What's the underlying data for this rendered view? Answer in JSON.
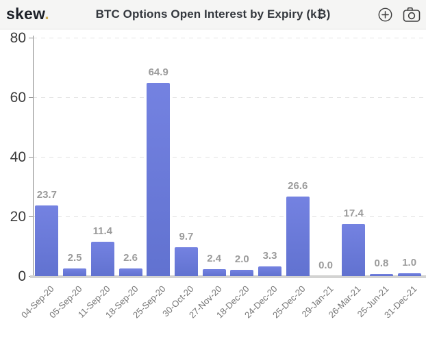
{
  "header": {
    "logo": {
      "text": "skew",
      "dot": "."
    },
    "title": "BTC Options Open Interest by Expiry (k₿)",
    "actions": [
      {
        "name": "add-alert",
        "icon": "plus-circle-icon"
      },
      {
        "name": "snapshot",
        "icon": "camera-icon"
      }
    ]
  },
  "colors": {
    "bar": "#6b7ad8",
    "bar_gradient_top": "#7482e1",
    "bar_gradient_bottom": "#6172d0",
    "logo_dot_gold": "#cfad55",
    "value_label": "#9b9b9b",
    "y_axis_label": "#3b3b3b",
    "x_axis_label": "#757575",
    "gridline": "#e2e2e2",
    "axis_line": "#8b8b8b",
    "baseline": "#d3d3d2",
    "header_bg": "#f5f5f4"
  },
  "chart_data": {
    "type": "bar",
    "title": "BTC Options Open Interest by Expiry (k₿)",
    "categories": [
      "04-Sep-20",
      "05-Sep-20",
      "11-Sep-20",
      "18-Sep-20",
      "25-Sep-20",
      "30-Oct-20",
      "27-Nov-20",
      "18-Dec-20",
      "24-Dec-20",
      "25-Dec-20",
      "29-Jan-21",
      "26-Mar-21",
      "25-Jun-21",
      "31-Dec-21"
    ],
    "values": [
      23.7,
      2.5,
      11.4,
      2.6,
      64.9,
      9.7,
      2.4,
      2.0,
      3.3,
      26.6,
      0.0,
      17.4,
      0.8,
      1.0
    ],
    "value_labels": [
      "23.7",
      "2.5",
      "11.4",
      "2.6",
      "64.9",
      "9.7",
      "2.4",
      "2.0",
      "3.3",
      "26.6",
      "0.0",
      "17.4",
      "0.8",
      "1.0"
    ],
    "xlabel": "",
    "ylabel": "",
    "ylim": [
      0,
      80
    ],
    "yticks": [
      0,
      20,
      40,
      60,
      80
    ],
    "grid": "horizontal-dashed",
    "legend": "none",
    "x_tick_rotation": 45
  }
}
